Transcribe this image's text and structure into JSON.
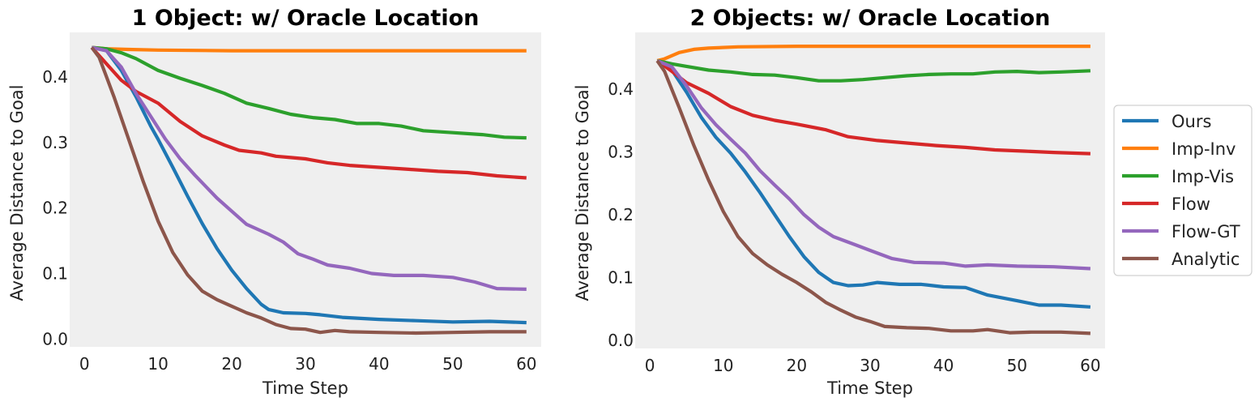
{
  "chart_data": [
    {
      "type": "line",
      "title": "1 Object: w/ Oracle Location",
      "xlabel": "Time Step",
      "ylabel": "Average Distance to Goal",
      "xlim": [
        -2,
        62
      ],
      "ylim": [
        -0.012,
        0.468
      ],
      "xticks": [
        0,
        10,
        20,
        30,
        40,
        50,
        60
      ],
      "yticks": [
        0.0,
        0.1,
        0.2,
        0.3,
        0.4
      ],
      "ytick_labels": [
        "0.0",
        "0.1",
        "0.2",
        "0.3",
        "0.4"
      ],
      "grid": false,
      "series": [
        {
          "name": "Ours",
          "points": [
            [
              1,
              0.445
            ],
            [
              3,
              0.44
            ],
            [
              5,
              0.41
            ],
            [
              7,
              0.37
            ],
            [
              9,
              0.325
            ],
            [
              10,
              0.305
            ],
            [
              12,
              0.262
            ],
            [
              14,
              0.218
            ],
            [
              16,
              0.176
            ],
            [
              18,
              0.138
            ],
            [
              20,
              0.105
            ],
            [
              22,
              0.077
            ],
            [
              24,
              0.053
            ],
            [
              25,
              0.045
            ],
            [
              27,
              0.04
            ],
            [
              30,
              0.039
            ],
            [
              32,
              0.037
            ],
            [
              35,
              0.033
            ],
            [
              40,
              0.03
            ],
            [
              45,
              0.028
            ],
            [
              50,
              0.026
            ],
            [
              55,
              0.027
            ],
            [
              60,
              0.025
            ]
          ]
        },
        {
          "name": "Imp-Inv",
          "points": [
            [
              1,
              0.445
            ],
            [
              3,
              0.443
            ],
            [
              6,
              0.442
            ],
            [
              10,
              0.441
            ],
            [
              20,
              0.44
            ],
            [
              30,
              0.44
            ],
            [
              40,
              0.44
            ],
            [
              50,
              0.44
            ],
            [
              60,
              0.44
            ]
          ]
        },
        {
          "name": "Imp-Vis",
          "points": [
            [
              1,
              0.445
            ],
            [
              3,
              0.443
            ],
            [
              5,
              0.437
            ],
            [
              7,
              0.428
            ],
            [
              10,
              0.41
            ],
            [
              13,
              0.398
            ],
            [
              16,
              0.387
            ],
            [
              19,
              0.375
            ],
            [
              22,
              0.36
            ],
            [
              25,
              0.352
            ],
            [
              28,
              0.343
            ],
            [
              31,
              0.338
            ],
            [
              34,
              0.335
            ],
            [
              37,
              0.329
            ],
            [
              40,
              0.329
            ],
            [
              43,
              0.325
            ],
            [
              46,
              0.318
            ],
            [
              50,
              0.315
            ],
            [
              54,
              0.312
            ],
            [
              57,
              0.308
            ],
            [
              60,
              0.307
            ]
          ]
        },
        {
          "name": "Flow",
          "points": [
            [
              1,
              0.445
            ],
            [
              3,
              0.42
            ],
            [
              5,
              0.395
            ],
            [
              7,
              0.378
            ],
            [
              10,
              0.36
            ],
            [
              13,
              0.332
            ],
            [
              16,
              0.31
            ],
            [
              19,
              0.296
            ],
            [
              21,
              0.288
            ],
            [
              24,
              0.284
            ],
            [
              26,
              0.279
            ],
            [
              28,
              0.277
            ],
            [
              30,
              0.275
            ],
            [
              33,
              0.269
            ],
            [
              36,
              0.265
            ],
            [
              40,
              0.262
            ],
            [
              44,
              0.259
            ],
            [
              48,
              0.256
            ],
            [
              52,
              0.254
            ],
            [
              56,
              0.249
            ],
            [
              60,
              0.246
            ]
          ]
        },
        {
          "name": "Flow-GT",
          "points": [
            [
              1,
              0.445
            ],
            [
              3,
              0.44
            ],
            [
              5,
              0.415
            ],
            [
              7,
              0.375
            ],
            [
              9,
              0.34
            ],
            [
              11,
              0.305
            ],
            [
              13,
              0.275
            ],
            [
              15,
              0.25
            ],
            [
              18,
              0.215
            ],
            [
              20,
              0.195
            ],
            [
              22,
              0.175
            ],
            [
              25,
              0.16
            ],
            [
              27,
              0.148
            ],
            [
              29,
              0.13
            ],
            [
              31,
              0.122
            ],
            [
              33,
              0.113
            ],
            [
              36,
              0.108
            ],
            [
              39,
              0.1
            ],
            [
              42,
              0.097
            ],
            [
              46,
              0.097
            ],
            [
              50,
              0.094
            ],
            [
              53,
              0.087
            ],
            [
              56,
              0.077
            ],
            [
              60,
              0.076
            ]
          ]
        },
        {
          "name": "Analytic",
          "points": [
            [
              1,
              0.445
            ],
            [
              2,
              0.43
            ],
            [
              4,
              0.37
            ],
            [
              6,
              0.305
            ],
            [
              8,
              0.24
            ],
            [
              10,
              0.18
            ],
            [
              12,
              0.132
            ],
            [
              14,
              0.098
            ],
            [
              16,
              0.073
            ],
            [
              18,
              0.06
            ],
            [
              20,
              0.05
            ],
            [
              22,
              0.04
            ],
            [
              24,
              0.032
            ],
            [
              26,
              0.022
            ],
            [
              28,
              0.016
            ],
            [
              30,
              0.015
            ],
            [
              32,
              0.01
            ],
            [
              34,
              0.013
            ],
            [
              36,
              0.011
            ],
            [
              40,
              0.01
            ],
            [
              45,
              0.009
            ],
            [
              50,
              0.01
            ],
            [
              55,
              0.011
            ],
            [
              60,
              0.011
            ]
          ]
        }
      ]
    },
    {
      "type": "line",
      "title": "2 Objects: w/ Oracle Location",
      "xlabel": "Time Step",
      "ylabel": "Average Distance to Goal",
      "xlim": [
        -2,
        62
      ],
      "ylim": [
        -0.013,
        0.49
      ],
      "xticks": [
        0,
        10,
        20,
        30,
        40,
        50,
        60
      ],
      "yticks": [
        0.0,
        0.1,
        0.2,
        0.3,
        0.4
      ],
      "ytick_labels": [
        "0.0",
        "0.1",
        "0.2",
        "0.3",
        "0.4"
      ],
      "grid": false,
      "series": [
        {
          "name": "Ours",
          "points": [
            [
              1,
              0.445
            ],
            [
              3,
              0.43
            ],
            [
              5,
              0.395
            ],
            [
              7,
              0.355
            ],
            [
              9,
              0.323
            ],
            [
              11,
              0.298
            ],
            [
              13,
              0.268
            ],
            [
              15,
              0.235
            ],
            [
              17,
              0.2
            ],
            [
              19,
              0.165
            ],
            [
              21,
              0.133
            ],
            [
              23,
              0.108
            ],
            [
              25,
              0.092
            ],
            [
              27,
              0.087
            ],
            [
              29,
              0.088
            ],
            [
              31,
              0.092
            ],
            [
              34,
              0.089
            ],
            [
              37,
              0.089
            ],
            [
              40,
              0.085
            ],
            [
              43,
              0.084
            ],
            [
              46,
              0.072
            ],
            [
              50,
              0.063
            ],
            [
              53,
              0.056
            ],
            [
              56,
              0.056
            ],
            [
              60,
              0.053
            ]
          ]
        },
        {
          "name": "Imp-Inv",
          "points": [
            [
              1,
              0.445
            ],
            [
              2,
              0.448
            ],
            [
              4,
              0.458
            ],
            [
              6,
              0.463
            ],
            [
              8,
              0.465
            ],
            [
              12,
              0.467
            ],
            [
              20,
              0.468
            ],
            [
              30,
              0.468
            ],
            [
              40,
              0.468
            ],
            [
              50,
              0.468
            ],
            [
              60,
              0.468
            ]
          ]
        },
        {
          "name": "Imp-Vis",
          "points": [
            [
              1,
              0.445
            ],
            [
              3,
              0.44
            ],
            [
              5,
              0.436
            ],
            [
              8,
              0.43
            ],
            [
              11,
              0.427
            ],
            [
              14,
              0.423
            ],
            [
              17,
              0.422
            ],
            [
              20,
              0.418
            ],
            [
              23,
              0.413
            ],
            [
              26,
              0.413
            ],
            [
              29,
              0.415
            ],
            [
              32,
              0.418
            ],
            [
              35,
              0.421
            ],
            [
              38,
              0.423
            ],
            [
              41,
              0.424
            ],
            [
              44,
              0.424
            ],
            [
              47,
              0.427
            ],
            [
              50,
              0.428
            ],
            [
              53,
              0.426
            ],
            [
              56,
              0.427
            ],
            [
              60,
              0.429
            ]
          ]
        },
        {
          "name": "Flow",
          "points": [
            [
              1,
              0.445
            ],
            [
              3,
              0.428
            ],
            [
              5,
              0.41
            ],
            [
              8,
              0.393
            ],
            [
              11,
              0.372
            ],
            [
              14,
              0.358
            ],
            [
              17,
              0.35
            ],
            [
              20,
              0.344
            ],
            [
              24,
              0.335
            ],
            [
              27,
              0.324
            ],
            [
              31,
              0.318
            ],
            [
              35,
              0.314
            ],
            [
              39,
              0.31
            ],
            [
              43,
              0.307
            ],
            [
              47,
              0.303
            ],
            [
              51,
              0.301
            ],
            [
              55,
              0.299
            ],
            [
              60,
              0.297
            ]
          ]
        },
        {
          "name": "Flow-GT",
          "points": [
            [
              1,
              0.445
            ],
            [
              3,
              0.435
            ],
            [
              5,
              0.405
            ],
            [
              7,
              0.37
            ],
            [
              9,
              0.343
            ],
            [
              11,
              0.32
            ],
            [
              13,
              0.298
            ],
            [
              15,
              0.27
            ],
            [
              17,
              0.247
            ],
            [
              19,
              0.225
            ],
            [
              21,
              0.2
            ],
            [
              23,
              0.18
            ],
            [
              25,
              0.165
            ],
            [
              28,
              0.152
            ],
            [
              30,
              0.143
            ],
            [
              33,
              0.13
            ],
            [
              36,
              0.124
            ],
            [
              40,
              0.123
            ],
            [
              43,
              0.118
            ],
            [
              46,
              0.12
            ],
            [
              50,
              0.118
            ],
            [
              55,
              0.117
            ],
            [
              60,
              0.114
            ]
          ]
        },
        {
          "name": "Analytic",
          "points": [
            [
              1,
              0.445
            ],
            [
              2,
              0.428
            ],
            [
              4,
              0.37
            ],
            [
              6,
              0.31
            ],
            [
              8,
              0.255
            ],
            [
              10,
              0.205
            ],
            [
              12,
              0.165
            ],
            [
              14,
              0.138
            ],
            [
              16,
              0.12
            ],
            [
              18,
              0.105
            ],
            [
              20,
              0.092
            ],
            [
              22,
              0.077
            ],
            [
              24,
              0.06
            ],
            [
              26,
              0.048
            ],
            [
              28,
              0.037
            ],
            [
              30,
              0.03
            ],
            [
              32,
              0.022
            ],
            [
              35,
              0.02
            ],
            [
              38,
              0.019
            ],
            [
              41,
              0.015
            ],
            [
              44,
              0.015
            ],
            [
              46,
              0.017
            ],
            [
              49,
              0.012
            ],
            [
              52,
              0.013
            ],
            [
              56,
              0.013
            ],
            [
              60,
              0.011
            ]
          ]
        }
      ]
    }
  ],
  "legend": {
    "placement": "right",
    "entries": [
      {
        "name": "Ours",
        "color": "#1f77b4"
      },
      {
        "name": "Imp-Inv",
        "color": "#ff7f0e"
      },
      {
        "name": "Imp-Vis",
        "color": "#2ca02c"
      },
      {
        "name": "Flow",
        "color": "#d62728"
      },
      {
        "name": "Flow-GT",
        "color": "#9467bd"
      },
      {
        "name": "Analytic",
        "color": "#8c564b"
      }
    ]
  },
  "colors": {
    "plot_background": "#efefef",
    "page_background": "#ffffff"
  }
}
